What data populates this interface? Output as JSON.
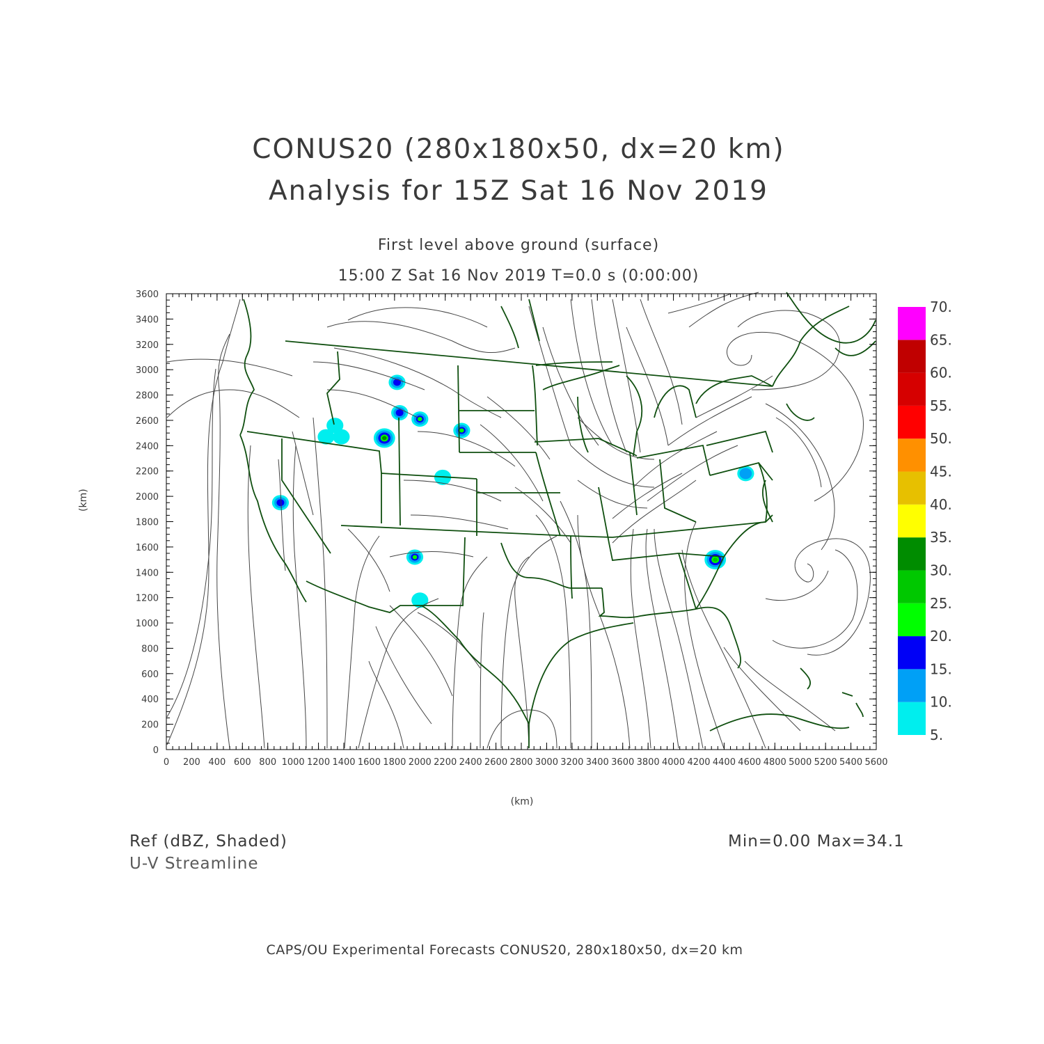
{
  "titles": {
    "line1": "CONUS20 (280x180x50, dx=20 km)",
    "line2": "Analysis for 15Z Sat 16 Nov 2019",
    "level": "First level above ground (surface)",
    "time": "15:00 Z Sat 16 Nov 2019    T=0.0 s (0:00:00)"
  },
  "axes": {
    "x_label": "(km)",
    "y_label": "(km)",
    "x_ticks": [
      0,
      200,
      400,
      600,
      800,
      1000,
      1200,
      1400,
      1600,
      1800,
      2000,
      2200,
      2400,
      2600,
      2800,
      3000,
      3200,
      3400,
      3600,
      3800,
      4000,
      4200,
      4400,
      4600,
      4800,
      5000,
      5200,
      5400,
      5600
    ],
    "y_ticks": [
      0,
      200,
      400,
      600,
      800,
      1000,
      1200,
      1400,
      1600,
      1800,
      2000,
      2200,
      2400,
      2600,
      2800,
      3000,
      3200,
      3400,
      3600
    ],
    "x_range": [
      0,
      5600
    ],
    "y_range": [
      0,
      3600
    ]
  },
  "colorbar": {
    "labels": [
      "5.",
      "10.",
      "15.",
      "20.",
      "25.",
      "30.",
      "35.",
      "40.",
      "45.",
      "50.",
      "55.",
      "60.",
      "65.",
      "70."
    ],
    "colors": [
      "#00eeee",
      "#00a0f6",
      "#0000f6",
      "#00ff00",
      "#00c800",
      "#008c00",
      "#ffff00",
      "#e7c000",
      "#ff9000",
      "#ff0000",
      "#d60000",
      "#c00000",
      "#ff00ff"
    ]
  },
  "legend": {
    "field": "Ref (dBZ, Shaded)",
    "overlay": "U-V Streamline",
    "minmax": "Min=0.00 Max=34.1"
  },
  "footer": "CAPS/OU Experimental Forecasts  CONUS20, 280x180x50, dx=20 km",
  "colors": {
    "boundaries": "#0f4f0f",
    "streamlines": "#444444",
    "text": "#3a3a3a"
  },
  "echoes": [
    {
      "x": 900,
      "y": 1950,
      "peak_dbz": 17
    },
    {
      "x": 1720,
      "y": 2460,
      "peak_dbz": 32
    },
    {
      "x": 1820,
      "y": 2900,
      "peak_dbz": 17
    },
    {
      "x": 1840,
      "y": 2660,
      "peak_dbz": 17
    },
    {
      "x": 2000,
      "y": 2610,
      "peak_dbz": 22
    },
    {
      "x": 2330,
      "y": 2520,
      "peak_dbz": 22
    },
    {
      "x": 1960,
      "y": 1520,
      "peak_dbz": 22
    },
    {
      "x": 4330,
      "y": 1500,
      "peak_dbz": 27
    },
    {
      "x": 4570,
      "y": 2180,
      "peak_dbz": 12
    },
    {
      "x": 1330,
      "y": 2560,
      "peak_dbz": 7
    },
    {
      "x": 1260,
      "y": 2470,
      "peak_dbz": 7
    },
    {
      "x": 1380,
      "y": 2470,
      "peak_dbz": 7
    },
    {
      "x": 2180,
      "y": 2150,
      "peak_dbz": 7
    },
    {
      "x": 2000,
      "y": 1180,
      "peak_dbz": 7
    }
  ]
}
